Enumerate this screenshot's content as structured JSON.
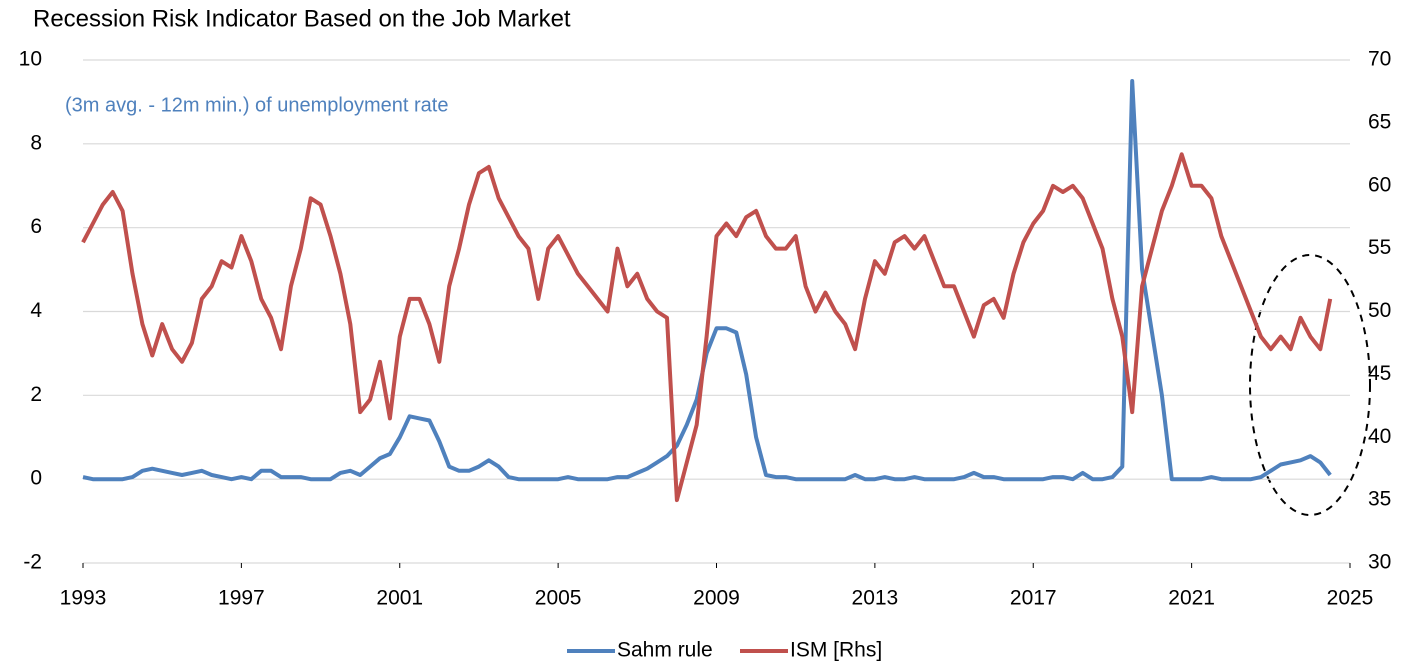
{
  "chart_data": {
    "type": "line",
    "title": "Recession Risk Indicator Based on the Job Market",
    "annotation": "(3m avg. - 12m min.) of unemployment rate",
    "x": [
      1993,
      1993.25,
      1993.5,
      1993.75,
      1994,
      1994.25,
      1994.5,
      1994.75,
      1995,
      1995.25,
      1995.5,
      1995.75,
      1996,
      1996.25,
      1996.5,
      1996.75,
      1997,
      1997.25,
      1997.5,
      1997.75,
      1998,
      1998.25,
      1998.5,
      1998.75,
      1999,
      1999.25,
      1999.5,
      1999.75,
      2000,
      2000.25,
      2000.5,
      2000.75,
      2001,
      2001.25,
      2001.5,
      2001.75,
      2002,
      2002.25,
      2002.5,
      2002.75,
      2003,
      2003.25,
      2003.5,
      2003.75,
      2004,
      2004.25,
      2004.5,
      2004.75,
      2005,
      2005.25,
      2005.5,
      2005.75,
      2006,
      2006.25,
      2006.5,
      2006.75,
      2007,
      2007.25,
      2007.5,
      2007.75,
      2008,
      2008.25,
      2008.5,
      2008.75,
      2009,
      2009.25,
      2009.5,
      2009.75,
      2010,
      2010.25,
      2010.5,
      2010.75,
      2011,
      2011.25,
      2011.5,
      2011.75,
      2012,
      2012.25,
      2012.5,
      2012.75,
      2013,
      2013.25,
      2013.5,
      2013.75,
      2014,
      2014.25,
      2014.5,
      2014.75,
      2015,
      2015.25,
      2015.5,
      2015.75,
      2016,
      2016.25,
      2016.5,
      2016.75,
      2017,
      2017.25,
      2017.5,
      2017.75,
      2018,
      2018.25,
      2018.5,
      2018.75,
      2019,
      2019.25,
      2019.5,
      2019.75,
      2020,
      2020.25,
      2020.5,
      2020.75,
      2021,
      2021.25,
      2021.5,
      2021.75,
      2022,
      2022.25,
      2022.5,
      2022.75,
      2023,
      2023.25,
      2023.5,
      2023.75,
      2024,
      2024.25,
      2024.5
    ],
    "series": [
      {
        "name": "Sahm rule",
        "color": "#4f81bd",
        "axis": "y",
        "values": [
          0.05,
          0,
          0,
          0,
          0,
          0.05,
          0.2,
          0.25,
          0.2,
          0.15,
          0.1,
          0.15,
          0.2,
          0.1,
          0.05,
          0,
          0.05,
          0,
          0.2,
          0.2,
          0.05,
          0.05,
          0.05,
          0,
          0,
          0,
          0.15,
          0.2,
          0.1,
          0.3,
          0.5,
          0.6,
          1,
          1.5,
          1.45,
          1.4,
          0.9,
          0.3,
          0.2,
          0.2,
          0.3,
          0.45,
          0.3,
          0.05,
          0,
          0,
          0,
          0,
          0,
          0.05,
          0,
          0,
          0,
          0,
          0.05,
          0.05,
          0.15,
          0.25,
          0.4,
          0.55,
          0.8,
          1.3,
          1.9,
          3,
          3.6,
          3.6,
          3.5,
          2.5,
          1,
          0.1,
          0.05,
          0.05,
          0,
          0,
          0,
          0,
          0,
          0,
          0.1,
          0,
          0,
          0.05,
          0,
          0,
          0.05,
          0,
          0,
          0,
          0,
          0.05,
          0.15,
          0.05,
          0.05,
          0,
          0,
          0,
          0,
          0,
          0.05,
          0.05,
          0,
          0.15,
          0,
          0,
          0.05,
          0.3,
          9.5,
          5,
          3.5,
          2,
          0,
          0,
          0,
          0,
          0.05,
          0,
          0,
          0,
          0,
          0.05,
          0.2,
          0.35,
          0.4,
          0.45,
          0.55,
          0.4,
          0.1
        ]
      },
      {
        "name": "ISM [Rhs]",
        "color": "#c0504d",
        "axis": "y2",
        "values": [
          55.5,
          57,
          58.5,
          59.5,
          58,
          53,
          49,
          46.5,
          49,
          47,
          46,
          47.5,
          51,
          52,
          54,
          53.5,
          56,
          54,
          51,
          49.5,
          47,
          52,
          55,
          59,
          58.5,
          56,
          53,
          49,
          42,
          43,
          46,
          41.5,
          48,
          51,
          51,
          49,
          46,
          52,
          55,
          58.5,
          61,
          61.5,
          59,
          57.5,
          56,
          55,
          51,
          55,
          56,
          54.5,
          53,
          52,
          51,
          50,
          55,
          52,
          53,
          51,
          50,
          49.5,
          35,
          38,
          41,
          48,
          56,
          57,
          56,
          57.5,
          58,
          56,
          55,
          55,
          56,
          52,
          50,
          51.5,
          50,
          49,
          47,
          51,
          54,
          53,
          55.5,
          56,
          55,
          56,
          54,
          52,
          52,
          50,
          48,
          50.5,
          51,
          49.5,
          53,
          55.5,
          57,
          58,
          60,
          59.5,
          60,
          59,
          57,
          55,
          51,
          48,
          42,
          52,
          55,
          58,
          60,
          62.5,
          60,
          60,
          59,
          56,
          54,
          52,
          50,
          48,
          47,
          48,
          47,
          49.5,
          48,
          47,
          51
        ]
      }
    ],
    "xlim": [
      1993,
      2025
    ],
    "xticks": [
      1993,
      1997,
      2001,
      2005,
      2009,
      2013,
      2017,
      2021,
      2025
    ],
    "ylim": [
      -2,
      10
    ],
    "yticks": [
      -2,
      0,
      2,
      4,
      6,
      8,
      10
    ],
    "y2lim": [
      30,
      70
    ],
    "y2ticks": [
      30,
      35,
      40,
      45,
      50,
      55,
      60,
      65,
      70
    ],
    "grid": true,
    "legend": "bottom"
  }
}
